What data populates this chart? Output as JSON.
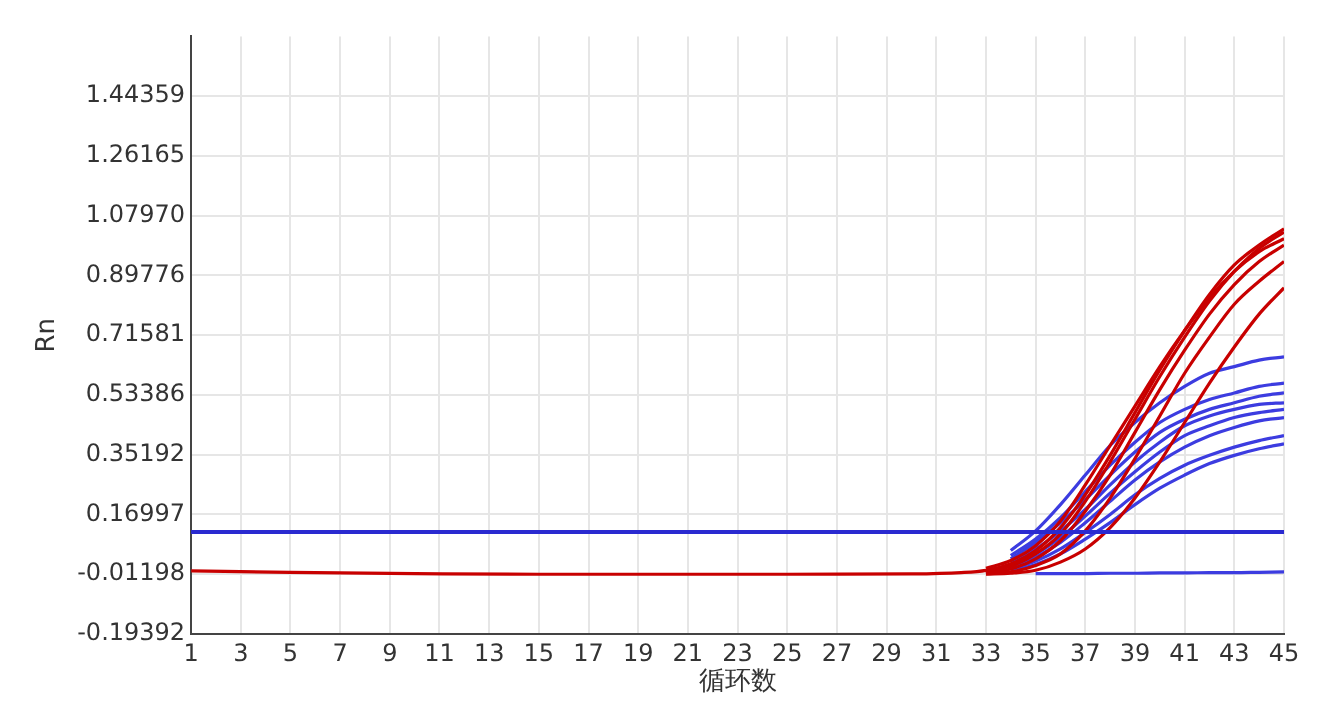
{
  "chart_data": {
    "type": "line",
    "xlabel": "循环数",
    "ylabel": "Rn",
    "x": [
      1,
      5,
      10,
      15,
      20,
      25,
      30,
      32,
      33,
      34,
      35,
      36,
      37,
      38,
      39,
      40,
      41,
      42,
      43,
      44,
      45
    ],
    "xlim": [
      1,
      45
    ],
    "xticks": [
      1,
      3,
      5,
      7,
      9,
      11,
      13,
      15,
      17,
      19,
      21,
      23,
      25,
      27,
      29,
      31,
      33,
      35,
      37,
      39,
      41,
      43,
      45
    ],
    "ylim": [
      -0.19392,
      1.62553
    ],
    "yticks": [
      -0.19392,
      -0.01198,
      0.16997,
      0.35192,
      0.53386,
      0.71581,
      0.89776,
      {
        "value": 1.0797,
        "label": "1.07970"
      },
      1.26165,
      1.44359
    ],
    "grid": true,
    "marker": "none",
    "line_style": "solid",
    "ref_lines": [
      {
        "axis": "y",
        "value": 0.117,
        "color": "#2a2ad0"
      }
    ],
    "series": [
      {
        "color": "#c80000",
        "values": [
          -0.002,
          -0.006,
          -0.01,
          -0.012,
          -0.012,
          -0.012,
          -0.011,
          -0.007,
          0.0,
          0.02,
          0.06,
          0.13,
          0.23,
          0.35,
          0.48,
          0.61,
          0.73,
          0.84,
          0.93,
          0.99,
          1.04
        ]
      },
      {
        "color": "#c80000",
        "values": [
          null,
          null,
          null,
          null,
          null,
          null,
          null,
          null,
          -0.004,
          0.012,
          0.05,
          0.11,
          0.21,
          0.33,
          0.46,
          0.59,
          0.71,
          0.82,
          0.91,
          0.98,
          1.03
        ]
      },
      {
        "color": "#c80000",
        "values": [
          null,
          null,
          null,
          null,
          null,
          null,
          null,
          null,
          0.006,
          0.03,
          0.075,
          0.15,
          0.26,
          0.38,
          0.5,
          0.62,
          0.73,
          0.83,
          0.91,
          0.97,
          1.01
        ]
      },
      {
        "color": "#c80000",
        "values": [
          null,
          null,
          null,
          null,
          null,
          null,
          null,
          null,
          -0.008,
          0.004,
          0.035,
          0.09,
          0.18,
          0.29,
          0.42,
          0.55,
          0.67,
          0.78,
          0.87,
          0.94,
          0.99
        ]
      },
      {
        "color": "#c80000",
        "values": [
          null,
          null,
          null,
          null,
          null,
          null,
          null,
          null,
          -0.01,
          -0.005,
          0.015,
          0.05,
          0.12,
          0.22,
          0.34,
          0.47,
          0.6,
          0.71,
          0.81,
          0.88,
          0.94
        ]
      },
      {
        "color": "#c80000",
        "values": [
          null,
          null,
          null,
          null,
          null,
          null,
          null,
          null,
          -0.012,
          -0.009,
          0.0,
          0.025,
          0.065,
          0.13,
          0.22,
          0.33,
          0.45,
          0.57,
          0.68,
          0.78,
          0.86
        ]
      },
      {
        "color": "#3c3ce0",
        "values": [
          null,
          null,
          null,
          null,
          null,
          null,
          null,
          null,
          null,
          0.06,
          0.12,
          0.2,
          0.29,
          0.38,
          0.45,
          0.51,
          0.56,
          0.6,
          0.62,
          0.64,
          0.65
        ]
      },
      {
        "color": "#3c3ce0",
        "values": [
          null,
          null,
          null,
          null,
          null,
          null,
          null,
          null,
          null,
          0.045,
          0.095,
          0.16,
          0.24,
          0.32,
          0.39,
          0.45,
          0.49,
          0.52,
          0.54,
          0.56,
          0.57
        ]
      },
      {
        "color": "#3c3ce0",
        "values": [
          null,
          null,
          null,
          null,
          null,
          null,
          null,
          null,
          null,
          0.035,
          0.085,
          0.145,
          0.215,
          0.29,
          0.36,
          0.42,
          0.46,
          0.49,
          0.51,
          0.53,
          0.54
        ]
      },
      {
        "color": "#3c3ce0",
        "values": [
          null,
          null,
          null,
          null,
          null,
          null,
          null,
          null,
          null,
          0.025,
          0.065,
          0.12,
          0.185,
          0.26,
          0.33,
          0.39,
          0.44,
          0.47,
          0.49,
          0.505,
          0.51
        ]
      },
      {
        "color": "#3c3ce0",
        "values": [
          null,
          null,
          null,
          null,
          null,
          null,
          null,
          null,
          null,
          0.018,
          0.05,
          0.1,
          0.165,
          0.235,
          0.3,
          0.36,
          0.41,
          0.44,
          0.465,
          0.48,
          0.49
        ]
      },
      {
        "color": "#3c3ce0",
        "values": [
          null,
          null,
          null,
          null,
          null,
          null,
          null,
          null,
          null,
          0.01,
          0.04,
          0.085,
          0.145,
          0.21,
          0.275,
          0.33,
          0.375,
          0.41,
          0.435,
          0.455,
          0.465
        ]
      },
      {
        "color": "#3c3ce0",
        "values": [
          null,
          null,
          null,
          null,
          null,
          null,
          null,
          null,
          null,
          0.004,
          0.028,
          0.065,
          0.115,
          0.17,
          0.23,
          0.28,
          0.32,
          0.35,
          0.375,
          0.395,
          0.41
        ]
      },
      {
        "color": "#3c3ce0",
        "values": [
          null,
          null,
          null,
          null,
          null,
          null,
          null,
          null,
          null,
          -0.002,
          0.018,
          0.05,
          0.095,
          0.145,
          0.2,
          0.25,
          0.29,
          0.325,
          0.35,
          0.37,
          0.385
        ]
      },
      {
        "color": "#3c3ce0",
        "values": [
          null,
          null,
          null,
          null,
          null,
          null,
          null,
          null,
          null,
          null,
          -0.01,
          -0.01,
          -0.01,
          -0.009,
          -0.009,
          -0.008,
          -0.008,
          -0.007,
          -0.007,
          -0.006,
          -0.005
        ]
      }
    ]
  }
}
